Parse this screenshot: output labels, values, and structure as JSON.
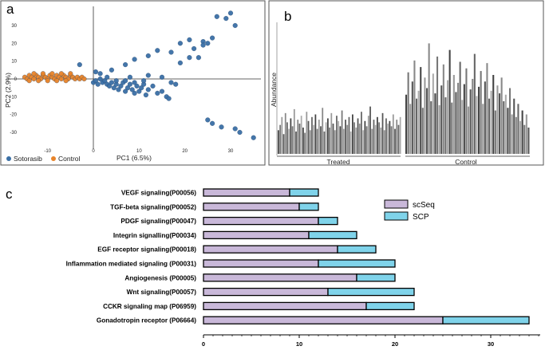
{
  "panels": {
    "a": "a",
    "b": "b",
    "c": "c"
  },
  "chart_data": [
    {
      "type": "scatter",
      "panel": "a",
      "title": "",
      "xlabel": "PC1 (6.5%)",
      "ylabel": "PC2 (2.9%)",
      "xlim": [
        -15,
        37
      ],
      "ylim": [
        -35,
        37
      ],
      "xticks": [
        -10,
        0,
        10,
        20,
        30
      ],
      "xtick_labels": [
        "-10",
        "0",
        "10",
        "20",
        "30"
      ],
      "yticks": [
        -30,
        -20,
        -10,
        0,
        10,
        20,
        30
      ],
      "ytick_labels": [
        "-30",
        "-20",
        "-10",
        "0",
        "10",
        "20",
        "30"
      ],
      "legend_position": "bottom-left",
      "series": [
        {
          "name": "Sotorasib",
          "color": "#3a6fa5",
          "points": [
            [
              0,
              -2
            ],
            [
              0.5,
              -1
            ],
            [
              1,
              -3
            ],
            [
              1.5,
              0
            ],
            [
              2,
              -2
            ],
            [
              2.5,
              -1
            ],
            [
              3,
              -3
            ],
            [
              3.5,
              -4
            ],
            [
              4,
              -2
            ],
            [
              4.5,
              -5
            ],
            [
              5,
              -3
            ],
            [
              5.5,
              -6
            ],
            [
              6,
              -4
            ],
            [
              6.5,
              -2
            ],
            [
              7,
              -7
            ],
            [
              7.5,
              -5
            ],
            [
              8,
              -3
            ],
            [
              8.5,
              -6
            ],
            [
              9,
              -8
            ],
            [
              9.5,
              -4
            ],
            [
              10,
              -7
            ],
            [
              10.5,
              -5
            ],
            [
              11,
              -3
            ],
            [
              11.5,
              -9
            ],
            [
              12,
              -6
            ],
            [
              13,
              -4
            ],
            [
              14,
              -8
            ],
            [
              15,
              -7
            ],
            [
              5,
              -1
            ],
            [
              7,
              -1
            ],
            [
              9,
              -2
            ],
            [
              11,
              -1
            ],
            [
              3,
              1
            ],
            [
              8,
              1
            ],
            [
              12,
              2
            ],
            [
              0.5,
              4
            ],
            [
              1.5,
              3
            ],
            [
              4,
              5
            ],
            [
              7,
              8
            ],
            [
              9,
              11
            ],
            [
              12,
              13
            ],
            [
              14,
              16
            ],
            [
              17,
              15
            ],
            [
              19,
              20
            ],
            [
              21,
              22
            ],
            [
              22,
              17
            ],
            [
              24,
              21
            ],
            [
              26,
              23
            ],
            [
              27,
              35
            ],
            [
              29,
              34
            ],
            [
              30,
              37
            ],
            [
              31,
              30
            ],
            [
              19,
              9
            ],
            [
              21,
              12
            ],
            [
              23,
              12
            ],
            [
              24,
              19
            ],
            [
              25,
              20
            ],
            [
              17,
              -2
            ],
            [
              18,
              -3
            ],
            [
              15,
              1
            ],
            [
              16,
              -10
            ],
            [
              16.5,
              -11
            ],
            [
              26,
              -25
            ],
            [
              28,
              -27
            ],
            [
              31,
              -28
            ],
            [
              32,
              -30
            ],
            [
              35,
              -33
            ],
            [
              25,
              -23
            ],
            [
              -3,
              8
            ]
          ]
        },
        {
          "name": "Control",
          "color": "#e8842a",
          "points": [
            [
              -15,
              1
            ],
            [
              -14.5,
              0
            ],
            [
              -14,
              2
            ],
            [
              -13.5,
              1
            ],
            [
              -13,
              0
            ],
            [
              -12.5,
              2
            ],
            [
              -12,
              1
            ],
            [
              -11.5,
              0
            ],
            [
              -11,
              2
            ],
            [
              -10.5,
              1
            ],
            [
              -10,
              0
            ],
            [
              -9.5,
              2
            ],
            [
              -9,
              1
            ],
            [
              -8.5,
              0
            ],
            [
              -8,
              2
            ],
            [
              -7.5,
              1
            ],
            [
              -7,
              0
            ],
            [
              -6.5,
              2
            ],
            [
              -6,
              1
            ],
            [
              -5.5,
              0
            ],
            [
              -5,
              2
            ],
            [
              -4.5,
              1
            ],
            [
              -4,
              0
            ],
            [
              -3.5,
              1
            ],
            [
              -3,
              0
            ],
            [
              -2.5,
              1
            ],
            [
              -2,
              0
            ],
            [
              -14,
              -1
            ],
            [
              -12,
              -1
            ],
            [
              -10,
              -1
            ],
            [
              -8,
              -1
            ],
            [
              -6,
              -1
            ],
            [
              -13,
              3
            ],
            [
              -11,
              3
            ],
            [
              -9,
              3
            ],
            [
              -7,
              3
            ],
            [
              -5,
              3
            ]
          ]
        }
      ]
    },
    {
      "type": "bar",
      "panel": "b",
      "title": "",
      "xlabel": "",
      "ylabel": "Abundance",
      "group_labels": [
        "Treated",
        "Control"
      ],
      "ylim": [
        0,
        1
      ],
      "treated_values": [
        0.18,
        0.22,
        0.28,
        0.15,
        0.31,
        0.24,
        0.19,
        0.27,
        0.21,
        0.34,
        0.17,
        0.26,
        0.23,
        0.29,
        0.2,
        0.16,
        0.32,
        0.25,
        0.18,
        0.28,
        0.22,
        0.3,
        0.19,
        0.26,
        0.21,
        0.35,
        0.17,
        0.24,
        0.27,
        0.2,
        0.31,
        0.23,
        0.18,
        0.29,
        0.25,
        0.21,
        0.33,
        0.19,
        0.26,
        0.22,
        0.28,
        0.17,
        0.3,
        0.24,
        0.2,
        0.27,
        0.23,
        0.32,
        0.18,
        0.25,
        0.21,
        0.29,
        0.36,
        0.19,
        0.26,
        0.22,
        0.28,
        0.24,
        0.2,
        0.31,
        0.18,
        0.27,
        0.23,
        0.25,
        0.21,
        0.3,
        0.19,
        0.26,
        0.22,
        0.28
      ],
      "control_values": [
        0.45,
        0.62,
        0.38,
        0.55,
        0.71,
        0.42,
        0.48,
        0.66,
        0.35,
        0.58,
        0.5,
        0.84,
        0.4,
        0.61,
        0.46,
        0.74,
        0.37,
        0.52,
        0.68,
        0.43,
        0.56,
        0.79,
        0.39,
        0.6,
        0.47,
        0.54,
        0.7,
        0.41,
        0.53,
        0.65,
        0.36,
        0.49,
        0.57,
        0.76,
        0.44,
        0.51,
        0.63,
        0.38,
        0.55,
        0.69,
        0.42,
        0.48,
        0.6,
        0.33,
        0.52,
        0.46,
        0.58,
        0.4,
        0.45,
        0.35,
        0.5,
        0.3,
        0.42,
        0.28,
        0.38,
        0.25,
        0.33,
        0.22,
        0.3,
        0.2
      ]
    },
    {
      "type": "bar",
      "orientation": "horizontal",
      "stacked": true,
      "panel": "c",
      "title": "",
      "xlabel": "",
      "ylabel": "",
      "xlim": [
        0,
        35
      ],
      "xticks": [
        0,
        10,
        20,
        30
      ],
      "xtick_labels": [
        "0",
        "10",
        "20",
        "30"
      ],
      "legend_position": "top-right",
      "categories": [
        "VEGF signaling(P00056)",
        "TGF-beta signaling(P00052)",
        "PDGF signaling(P00047)",
        "Integrin signalling(P00034)",
        "EGF receptor signaling(P00018)",
        "Inflammation mediated signaling (P00031)",
        "Angiogenesis (P00005)",
        "Wnt signaling(P00057)",
        "CCKR signaling map (P06959)",
        "Gonadotropin receptor (P06664)"
      ],
      "series": [
        {
          "name": "scSeq",
          "color": "#c9b8d9",
          "values": [
            9,
            10,
            12,
            11,
            14,
            12,
            16,
            13,
            17,
            25
          ]
        },
        {
          "name": "SCP",
          "color": "#7fd3ea",
          "values": [
            3,
            2,
            2,
            5,
            4,
            8,
            4,
            9,
            5,
            9
          ]
        }
      ]
    }
  ]
}
